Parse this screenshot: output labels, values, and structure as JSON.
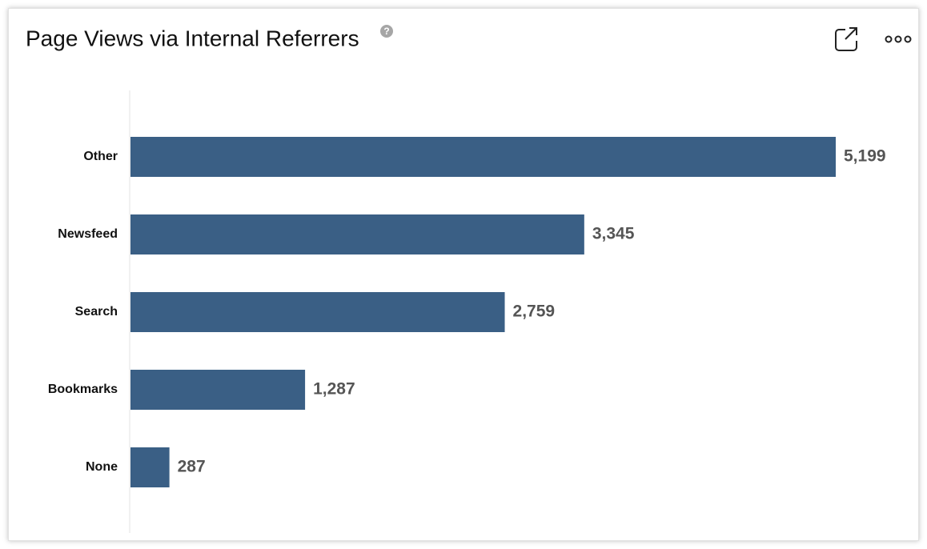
{
  "chart_data": {
    "type": "bar",
    "orientation": "horizontal",
    "title": "Page Views via Internal Referrers",
    "categories": [
      "Other",
      "Newsfeed",
      "Search",
      "Bookmarks",
      "None"
    ],
    "values": [
      5199,
      3345,
      2759,
      1287,
      287
    ],
    "value_labels": [
      "5,199",
      "3,345",
      "2,759",
      "1,287",
      "287"
    ],
    "color": "#3a5f85"
  }
}
